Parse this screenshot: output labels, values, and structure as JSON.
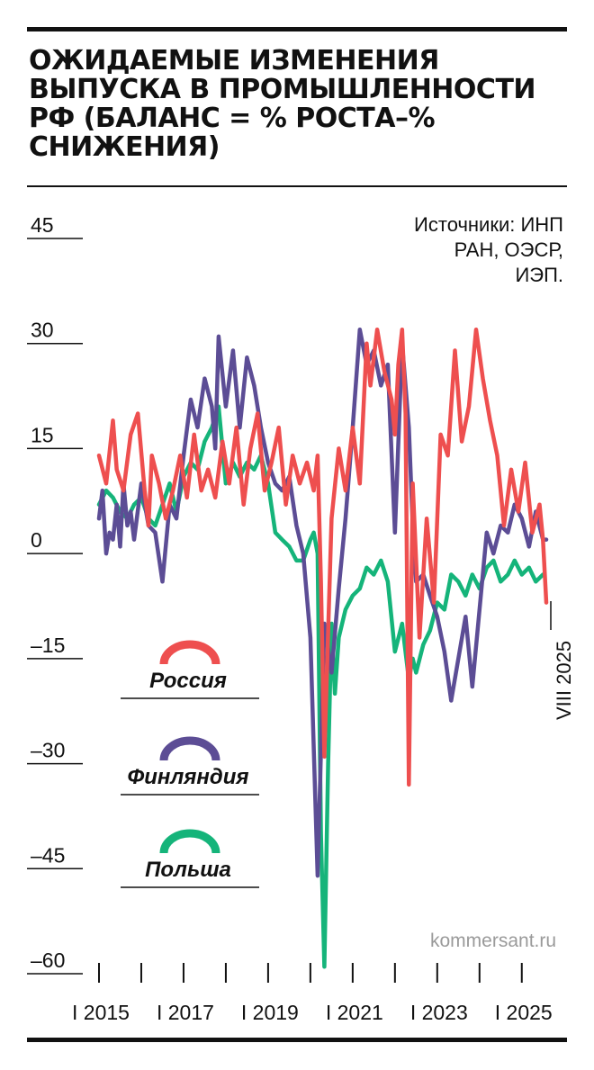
{
  "title": "Ожидаемые изменения выпуска в промышленности РФ (баланс = % роста–% снижения)",
  "sources": "Источники: ИНП РАН, ОЭСР, ИЭП.",
  "watermark": "kommersant.ru",
  "end_label": "VIII 2025",
  "colors": {
    "russia": "#ee4f4f",
    "finland": "#5c4d95",
    "poland": "#15b47a",
    "axis": "#111111",
    "watermark": "#9a9a9a"
  },
  "chart_data": {
    "type": "line",
    "title": "Ожидаемые изменения выпуска в промышленности РФ (баланс = % роста–% снижения)",
    "xlabel": "",
    "ylabel": "",
    "xlim": [
      2015.0,
      2025.75
    ],
    "ylim": [
      -60,
      45
    ],
    "yticks": [
      45,
      30,
      15,
      0,
      -15,
      -30,
      -45,
      -60
    ],
    "ytick_labels": [
      "45",
      "30",
      "15",
      "0",
      "–15",
      "–30",
      "–45",
      "–60"
    ],
    "xticks": [
      2015,
      2016,
      2017,
      2018,
      2019,
      2020,
      2021,
      2022,
      2023,
      2024,
      2025
    ],
    "xtick_labels": [
      {
        "year": 2015,
        "label": "I 2015"
      },
      {
        "year": 2017,
        "label": "I 2017"
      },
      {
        "year": 2019,
        "label": "I 2019"
      },
      {
        "year": 2021,
        "label": "I 2021"
      },
      {
        "year": 2023,
        "label": "I 2023"
      },
      {
        "year": 2025,
        "label": "I 2025"
      }
    ],
    "legend": {
      "placement": "left-center"
    },
    "series": [
      {
        "name": "Россия",
        "color": "#ee4f4f",
        "x": [
          2015.0,
          2015.17,
          2015.33,
          2015.42,
          2015.58,
          2015.75,
          2015.92,
          2016.08,
          2016.17,
          2016.25,
          2016.42,
          2016.58,
          2016.75,
          2016.92,
          2017.08,
          2017.25,
          2017.42,
          2017.58,
          2017.75,
          2017.92,
          2018.08,
          2018.25,
          2018.42,
          2018.58,
          2018.75,
          2018.92,
          2019.08,
          2019.25,
          2019.42,
          2019.58,
          2019.75,
          2019.92,
          2020.08,
          2020.17,
          2020.25,
          2020.33,
          2020.5,
          2020.67,
          2020.83,
          2021.0,
          2021.17,
          2021.33,
          2021.42,
          2021.58,
          2021.75,
          2021.92,
          2022.0,
          2022.08,
          2022.17,
          2022.25,
          2022.33,
          2022.42,
          2022.58,
          2022.75,
          2022.92,
          2023.08,
          2023.25,
          2023.42,
          2023.58,
          2023.75,
          2023.92,
          2024.08,
          2024.25,
          2024.42,
          2024.58,
          2024.75,
          2024.92,
          2025.08,
          2025.25,
          2025.42,
          2025.5,
          2025.58
        ],
        "y": [
          14,
          10,
          19,
          12,
          9,
          17,
          20,
          9,
          4,
          14,
          10,
          5,
          9,
          14,
          8,
          17,
          9,
          12,
          8,
          16,
          10,
          18,
          7,
          15,
          20,
          9,
          13,
          18,
          7,
          14,
          10,
          13,
          9,
          14,
          -4,
          -29,
          5,
          15,
          9,
          18,
          10,
          30,
          24,
          32,
          26,
          22,
          17,
          27,
          32,
          20,
          -33,
          10,
          -12,
          5,
          -7,
          17,
          14,
          29,
          16,
          21,
          32,
          25,
          19,
          14,
          4,
          12,
          6,
          13,
          3,
          7,
          2,
          -7
        ]
      },
      {
        "name": "Финляндия",
        "color": "#5c4d95",
        "x": [
          2015.0,
          2015.08,
          2015.17,
          2015.25,
          2015.33,
          2015.42,
          2015.5,
          2015.58,
          2015.67,
          2015.75,
          2015.83,
          2016.0,
          2016.17,
          2016.33,
          2016.5,
          2016.67,
          2016.83,
          2017.0,
          2017.17,
          2017.33,
          2017.5,
          2017.67,
          2017.75,
          2017.83,
          2018.0,
          2018.17,
          2018.33,
          2018.5,
          2018.67,
          2018.83,
          2019.0,
          2019.17,
          2019.33,
          2019.5,
          2019.67,
          2019.83,
          2020.0,
          2020.17,
          2020.33,
          2020.5,
          2020.67,
          2020.83,
          2021.0,
          2021.17,
          2021.33,
          2021.5,
          2021.67,
          2021.83,
          2022.0,
          2022.17,
          2022.33,
          2022.42,
          2022.5,
          2022.67,
          2022.83,
          2023.0,
          2023.17,
          2023.33,
          2023.5,
          2023.67,
          2023.83,
          2024.0,
          2024.17,
          2024.33,
          2024.5,
          2024.67,
          2024.83,
          2025.0,
          2025.17,
          2025.33,
          2025.5,
          2025.58
        ],
        "y": [
          5,
          9,
          0,
          3,
          2,
          7,
          1,
          10,
          4,
          6,
          2,
          10,
          4,
          3,
          -4,
          7,
          5,
          14,
          22,
          18,
          25,
          21,
          15,
          31,
          21,
          29,
          18,
          28,
          24,
          18,
          13,
          10,
          9,
          11,
          4,
          0,
          -12,
          -46,
          -10,
          -17,
          -5,
          5,
          18,
          32,
          27,
          29,
          24,
          27,
          3,
          30,
          18,
          4,
          -4,
          -3,
          -6,
          -9,
          -14,
          -21,
          -15,
          -9,
          -19,
          -8,
          3,
          0,
          4,
          3,
          7,
          5,
          1,
          6,
          2,
          2
        ]
      },
      {
        "name": "Польша",
        "color": "#15b47a",
        "x": [
          2015.0,
          2015.17,
          2015.33,
          2015.5,
          2015.67,
          2015.83,
          2016.0,
          2016.17,
          2016.33,
          2016.5,
          2016.67,
          2016.83,
          2017.0,
          2017.17,
          2017.33,
          2017.5,
          2017.67,
          2017.83,
          2018.0,
          2018.17,
          2018.33,
          2018.5,
          2018.67,
          2018.83,
          2019.0,
          2019.17,
          2019.33,
          2019.5,
          2019.67,
          2019.83,
          2020.0,
          2020.08,
          2020.17,
          2020.25,
          2020.33,
          2020.42,
          2020.5,
          2020.58,
          2020.67,
          2020.83,
          2021.0,
          2021.17,
          2021.33,
          2021.5,
          2021.67,
          2021.83,
          2022.0,
          2022.17,
          2022.33,
          2022.42,
          2022.5,
          2022.67,
          2022.83,
          2023.0,
          2023.17,
          2023.33,
          2023.5,
          2023.67,
          2023.83,
          2024.0,
          2024.17,
          2024.33,
          2024.5,
          2024.67,
          2024.83,
          2025.0,
          2025.17,
          2025.33,
          2025.5
        ],
        "y": [
          7,
          9,
          8,
          6,
          5,
          7,
          8,
          5,
          4,
          7,
          10,
          6,
          11,
          13,
          12,
          16,
          18,
          21,
          10,
          13,
          11,
          13,
          12,
          14,
          10,
          3,
          2,
          1,
          -1,
          -1,
          2,
          3,
          0,
          -40,
          -59,
          -30,
          -10,
          -20,
          -12,
          -8,
          -6,
          -5,
          -2,
          -3,
          -1,
          -4,
          -14,
          -10,
          -18,
          -15,
          -17,
          -13,
          -11,
          -7,
          -8,
          -3,
          -4,
          -6,
          -3,
          -5,
          -2,
          -1,
          -4,
          -3,
          -1,
          -3,
          -2,
          -4,
          -3
        ]
      }
    ]
  }
}
